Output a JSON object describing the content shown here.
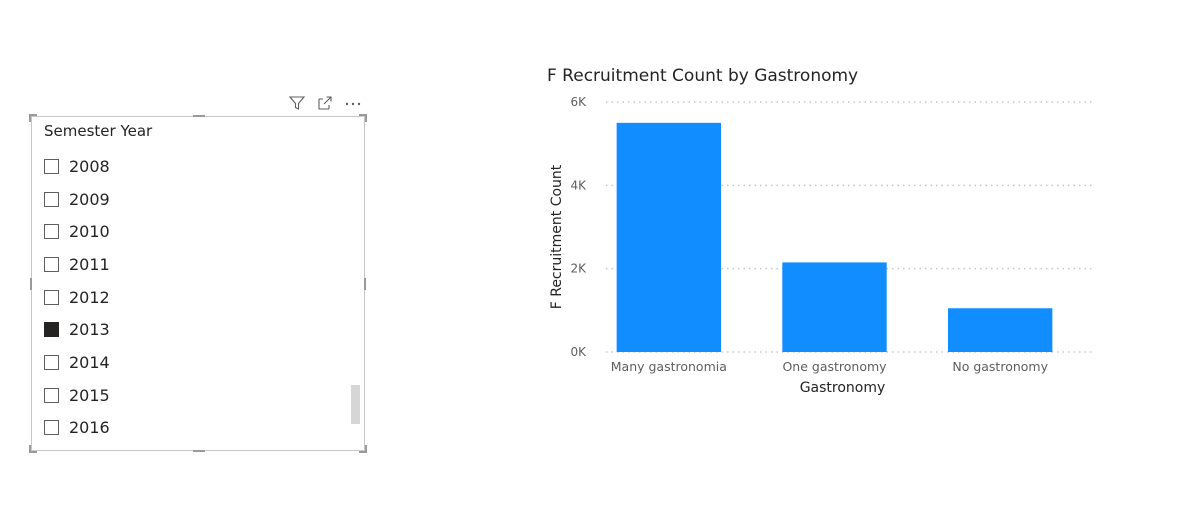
{
  "slicer": {
    "title": "Semester Year",
    "items": [
      {
        "label": "2008",
        "checked": false
      },
      {
        "label": "2009",
        "checked": false
      },
      {
        "label": "2010",
        "checked": false
      },
      {
        "label": "2011",
        "checked": false
      },
      {
        "label": "2012",
        "checked": false
      },
      {
        "label": "2013",
        "checked": true
      },
      {
        "label": "2014",
        "checked": false
      },
      {
        "label": "2015",
        "checked": false
      },
      {
        "label": "2016",
        "checked": false
      }
    ],
    "header_icons": [
      "filter-icon",
      "focus-mode-icon",
      "more-options-icon"
    ]
  },
  "colors": {
    "bar": "#118DFF",
    "text": "#252423",
    "axis_text": "#605E5C",
    "gridline": "#C8C6C4"
  },
  "chart_data": {
    "type": "bar",
    "title": "F Recruitment Count by Gastronomy",
    "xlabel": "Gastronomy",
    "ylabel": "F Recruitment Count",
    "categories": [
      "Many gastronomia",
      "One gastronomy",
      "No gastronomy"
    ],
    "values": [
      5500,
      2150,
      1050
    ],
    "ylim": [
      0,
      6000
    ],
    "yticks": [
      0,
      2000,
      4000,
      6000
    ],
    "ytick_labels": [
      "0K",
      "2K",
      "4K",
      "6K"
    ],
    "grid": true
  }
}
